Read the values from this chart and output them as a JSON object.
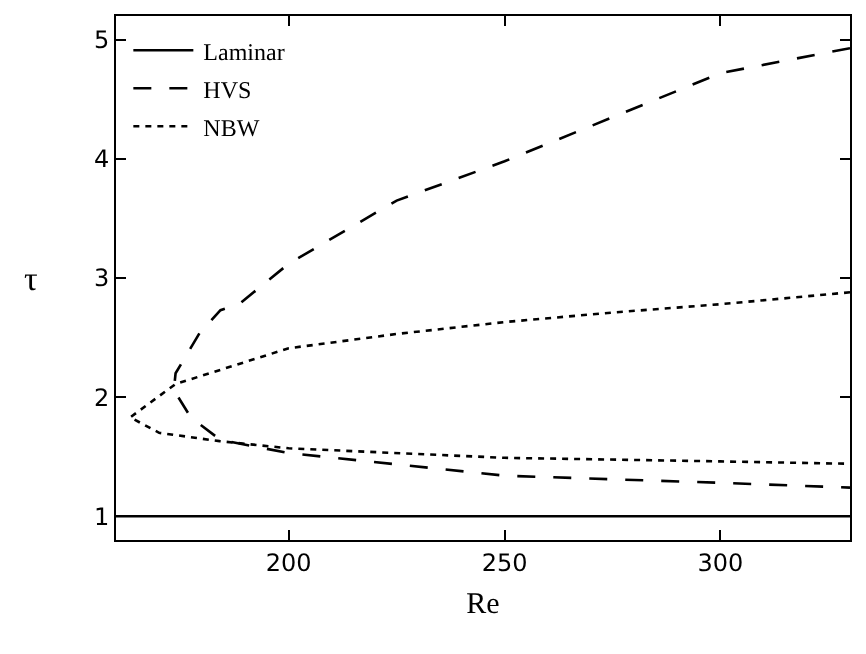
{
  "chart_data": {
    "type": "line",
    "xlabel": "Re",
    "ylabel": "τ",
    "xlim": [
      160,
      330
    ],
    "xticks": [
      200,
      250,
      300
    ],
    "ylim": [
      0.8,
      5.2
    ],
    "yticks": [
      1,
      2,
      3,
      4,
      5
    ],
    "grid": false,
    "legend": "top left",
    "marker": "none",
    "series": [
      {
        "name": "Laminar",
        "color": "#000000",
        "line_style": "solid",
        "x": [
          160,
          330
        ],
        "values": [
          1,
          1
        ]
      },
      {
        "name": "HVS",
        "color": "#000000",
        "line_style": "dashed",
        "x": [
          330,
          300,
          250,
          225,
          200,
          188.5,
          184.2,
          179.4,
          173.8,
          173.4,
          177.3,
          184.2,
          200,
          250,
          300,
          330
        ],
        "values": [
          4.93,
          4.72,
          3.98,
          3.65,
          3.12,
          2.78,
          2.73,
          2.54,
          2.2,
          2.06,
          1.83,
          1.64,
          1.53,
          1.34,
          1.28,
          1.24
        ]
      },
      {
        "name": "NBW",
        "color": "#000000",
        "line_style": "dotted",
        "x": [
          330,
          300,
          275,
          250,
          225,
          200,
          173.8,
          163.3,
          170,
          184,
          200,
          250,
          300,
          330
        ],
        "values": [
          2.88,
          2.78,
          2.71,
          2.63,
          2.53,
          2.41,
          2.11,
          1.83,
          1.7,
          1.63,
          1.57,
          1.49,
          1.46,
          1.44
        ]
      }
    ]
  }
}
